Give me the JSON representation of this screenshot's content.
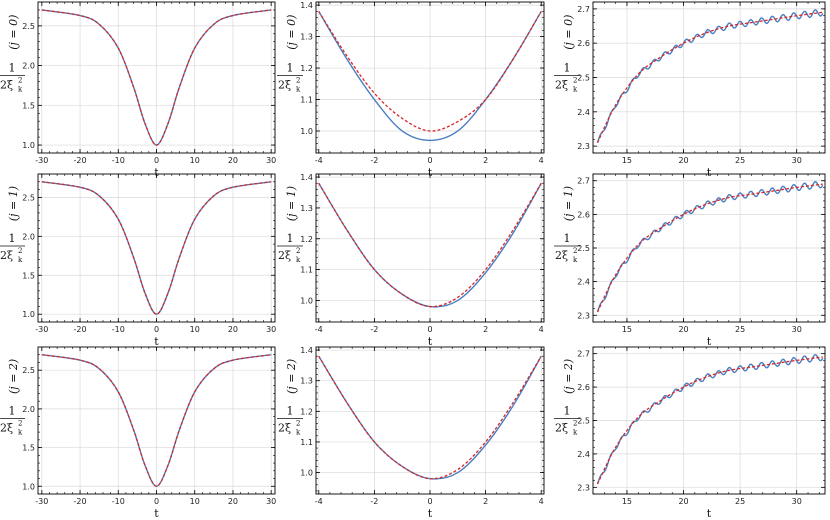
{
  "colors": {
    "exact": "#4a7fc1",
    "approx": "#d62728",
    "grid": "#d9d9d9",
    "frame": "#000000"
  },
  "row_labels": [
    "(j = 0)",
    "(j = 1)",
    "(j = 2)"
  ],
  "ylabel": {
    "numerator": "1",
    "denominator": "2ξ",
    "sub": "k",
    "sup": "2"
  },
  "xlabel": "t",
  "chart_data": [
    {
      "type": "line",
      "row": 0,
      "col": 0,
      "xlabel": "t",
      "ylabel": "1/(2ξ_k^2)",
      "xlim": [
        -31,
        31
      ],
      "ylim": [
        0.9,
        2.8
      ],
      "xticks": [
        -30,
        -20,
        -10,
        0,
        10,
        20,
        30
      ],
      "yticks": [
        1.0,
        1.5,
        2.0,
        2.5
      ],
      "grid": true,
      "series": [
        {
          "role": "exact",
          "style": "solid",
          "x": [
            -30,
            -20,
            -15,
            -10,
            -6,
            -3,
            0,
            3,
            6,
            10,
            15,
            20,
            30
          ],
          "y": [
            2.7,
            2.63,
            2.52,
            2.22,
            1.73,
            1.27,
            1.0,
            1.27,
            1.73,
            2.22,
            2.52,
            2.63,
            2.7
          ]
        },
        {
          "role": "approx",
          "style": "dashed",
          "x": [
            -30,
            -20,
            -15,
            -10,
            -6,
            -3,
            0,
            3,
            6,
            10,
            15,
            20,
            30
          ],
          "y": [
            2.7,
            2.63,
            2.52,
            2.22,
            1.73,
            1.27,
            1.0,
            1.27,
            1.73,
            2.22,
            2.52,
            2.63,
            2.7
          ]
        }
      ]
    },
    {
      "type": "line",
      "row": 0,
      "col": 1,
      "xlabel": "t",
      "ylabel": "1/(2ξ_k^2)",
      "xlim": [
        -4.1,
        4.1
      ],
      "ylim": [
        0.93,
        1.41
      ],
      "xticks": [
        -4,
        -2,
        0,
        2,
        4
      ],
      "yticks": [
        1.0,
        1.1,
        1.2,
        1.3,
        1.4
      ],
      "grid": true,
      "series": [
        {
          "role": "exact",
          "style": "solid",
          "x": [
            -4,
            -3,
            -2,
            -1,
            0,
            1,
            2,
            3,
            4
          ],
          "y": [
            1.38,
            1.23,
            1.1,
            1.0,
            0.97,
            1.0,
            1.1,
            1.23,
            1.38
          ]
        },
        {
          "role": "approx",
          "style": "dashed",
          "x": [
            -4,
            -3,
            -2,
            -1,
            0,
            1,
            2,
            3,
            4
          ],
          "y": [
            1.38,
            1.24,
            1.12,
            1.04,
            1.0,
            1.03,
            1.1,
            1.23,
            1.38
          ]
        }
      ]
    },
    {
      "type": "line",
      "row": 0,
      "col": 2,
      "xlabel": "t",
      "ylabel": "1/(2ξ_k^2)",
      "xlim": [
        12,
        32.5
      ],
      "ylim": [
        2.28,
        2.72
      ],
      "xticks": [
        15,
        20,
        25,
        30
      ],
      "yticks": [
        2.3,
        2.4,
        2.5,
        2.6,
        2.7
      ],
      "grid": true,
      "series": [
        {
          "role": "exact",
          "style": "solid oscillating",
          "x": [
            12.4,
            14,
            16,
            18,
            20,
            22,
            24,
            26,
            28,
            30,
            32.3
          ],
          "y": [
            2.31,
            2.42,
            2.51,
            2.56,
            2.6,
            2.63,
            2.65,
            2.66,
            2.67,
            2.68,
            2.69
          ]
        },
        {
          "role": "approx",
          "style": "dashed",
          "x": [
            12.4,
            14,
            16,
            18,
            20,
            22,
            24,
            26,
            28,
            30,
            32.3
          ],
          "y": [
            2.31,
            2.42,
            2.51,
            2.56,
            2.6,
            2.63,
            2.65,
            2.66,
            2.67,
            2.68,
            2.69
          ]
        }
      ]
    },
    {
      "type": "line",
      "row": 1,
      "col": 0,
      "xlabel": "t",
      "ylabel": "1/(2ξ_k^2)",
      "xlim": [
        -31,
        31
      ],
      "ylim": [
        0.9,
        2.8
      ],
      "xticks": [
        -30,
        -20,
        -10,
        0,
        10,
        20,
        30
      ],
      "yticks": [
        1.0,
        1.5,
        2.0,
        2.5
      ],
      "grid": true,
      "series": [
        {
          "role": "exact",
          "style": "solid",
          "x": [
            -30,
            -20,
            -15,
            -10,
            -6,
            -3,
            0,
            3,
            6,
            10,
            15,
            20,
            30
          ],
          "y": [
            2.7,
            2.63,
            2.52,
            2.22,
            1.73,
            1.27,
            1.0,
            1.27,
            1.73,
            2.22,
            2.52,
            2.63,
            2.7
          ]
        },
        {
          "role": "approx",
          "style": "dashed",
          "x": [
            -30,
            -20,
            -15,
            -10,
            -6,
            -3,
            0,
            3,
            6,
            10,
            15,
            20,
            30
          ],
          "y": [
            2.7,
            2.63,
            2.52,
            2.22,
            1.73,
            1.27,
            1.0,
            1.27,
            1.73,
            2.22,
            2.52,
            2.63,
            2.7
          ]
        }
      ]
    },
    {
      "type": "line",
      "row": 1,
      "col": 1,
      "xlabel": "t",
      "ylabel": "1/(2ξ_k^2)",
      "xlim": [
        -4.1,
        4.1
      ],
      "ylim": [
        0.93,
        1.41
      ],
      "xticks": [
        -4,
        -2,
        0,
        2,
        4
      ],
      "yticks": [
        1.0,
        1.1,
        1.2,
        1.3,
        1.4
      ],
      "grid": true,
      "series": [
        {
          "role": "exact",
          "style": "solid",
          "x": [
            -4,
            -3,
            -2,
            -1,
            0,
            1,
            2,
            3,
            4
          ],
          "y": [
            1.38,
            1.23,
            1.1,
            1.02,
            0.98,
            1.0,
            1.09,
            1.22,
            1.38
          ]
        },
        {
          "role": "approx",
          "style": "dashed",
          "x": [
            -4,
            -3,
            -2,
            -1,
            0,
            1,
            2,
            3,
            4
          ],
          "y": [
            1.38,
            1.23,
            1.1,
            1.02,
            0.98,
            1.01,
            1.1,
            1.23,
            1.38
          ]
        }
      ]
    },
    {
      "type": "line",
      "row": 1,
      "col": 2,
      "xlabel": "t",
      "ylabel": "1/(2ξ_k^2)",
      "xlim": [
        12,
        32.5
      ],
      "ylim": [
        2.28,
        2.72
      ],
      "xticks": [
        15,
        20,
        25,
        30
      ],
      "yticks": [
        2.3,
        2.4,
        2.5,
        2.6,
        2.7
      ],
      "grid": true,
      "series": [
        {
          "role": "exact",
          "style": "solid oscillating",
          "x": [
            12.4,
            14,
            16,
            18,
            20,
            22,
            24,
            26,
            28,
            30,
            32.3
          ],
          "y": [
            2.31,
            2.42,
            2.51,
            2.56,
            2.6,
            2.63,
            2.65,
            2.66,
            2.67,
            2.68,
            2.69
          ]
        },
        {
          "role": "approx",
          "style": "dashed",
          "x": [
            12.4,
            14,
            16,
            18,
            20,
            22,
            24,
            26,
            28,
            30,
            32.3
          ],
          "y": [
            2.31,
            2.42,
            2.51,
            2.56,
            2.6,
            2.63,
            2.65,
            2.66,
            2.67,
            2.68,
            2.69
          ]
        }
      ]
    },
    {
      "type": "line",
      "row": 2,
      "col": 0,
      "xlabel": "t",
      "ylabel": "1/(2ξ_k^2)",
      "xlim": [
        -31,
        31
      ],
      "ylim": [
        0.9,
        2.8
      ],
      "xticks": [
        -30,
        -20,
        -10,
        0,
        10,
        20,
        30
      ],
      "yticks": [
        1.0,
        1.5,
        2.0,
        2.5
      ],
      "grid": true,
      "series": [
        {
          "role": "exact",
          "style": "solid",
          "x": [
            -30,
            -20,
            -15,
            -10,
            -6,
            -3,
            0,
            3,
            6,
            10,
            15,
            20,
            30
          ],
          "y": [
            2.7,
            2.63,
            2.52,
            2.22,
            1.73,
            1.27,
            1.0,
            1.27,
            1.73,
            2.22,
            2.52,
            2.63,
            2.7
          ]
        },
        {
          "role": "approx",
          "style": "dashed",
          "x": [
            -30,
            -20,
            -15,
            -10,
            -6,
            -3,
            0,
            3,
            6,
            10,
            15,
            20,
            30
          ],
          "y": [
            2.7,
            2.63,
            2.52,
            2.22,
            1.73,
            1.27,
            1.0,
            1.27,
            1.73,
            2.22,
            2.52,
            2.63,
            2.7
          ]
        }
      ]
    },
    {
      "type": "line",
      "row": 2,
      "col": 1,
      "xlabel": "t",
      "ylabel": "1/(2ξ_k^2)",
      "xlim": [
        -4.1,
        4.1
      ],
      "ylim": [
        0.93,
        1.41
      ],
      "xticks": [
        -4,
        -2,
        0,
        2,
        4
      ],
      "yticks": [
        1.0,
        1.1,
        1.2,
        1.3,
        1.4
      ],
      "grid": true,
      "series": [
        {
          "role": "exact",
          "style": "solid",
          "x": [
            -4,
            -3,
            -2,
            -1,
            0,
            1,
            2,
            3,
            4
          ],
          "y": [
            1.38,
            1.23,
            1.1,
            1.02,
            0.98,
            1.0,
            1.09,
            1.22,
            1.38
          ]
        },
        {
          "role": "approx",
          "style": "dashed",
          "x": [
            -4,
            -3,
            -2,
            -1,
            0,
            1,
            2,
            3,
            4
          ],
          "y": [
            1.38,
            1.23,
            1.1,
            1.02,
            0.98,
            1.01,
            1.1,
            1.23,
            1.38
          ]
        }
      ]
    },
    {
      "type": "line",
      "row": 2,
      "col": 2,
      "xlabel": "t",
      "ylabel": "1/(2ξ_k^2)",
      "xlim": [
        12,
        32.5
      ],
      "ylim": [
        2.28,
        2.72
      ],
      "xticks": [
        15,
        20,
        25,
        30
      ],
      "yticks": [
        2.3,
        2.4,
        2.5,
        2.6,
        2.7
      ],
      "grid": true,
      "series": [
        {
          "role": "exact",
          "style": "solid oscillating",
          "x": [
            12.4,
            14,
            16,
            18,
            20,
            22,
            24,
            26,
            28,
            30,
            32.3
          ],
          "y": [
            2.31,
            2.42,
            2.51,
            2.56,
            2.6,
            2.63,
            2.65,
            2.66,
            2.67,
            2.68,
            2.69
          ]
        },
        {
          "role": "approx",
          "style": "dashed",
          "x": [
            12.4,
            14,
            16,
            18,
            20,
            22,
            24,
            26,
            28,
            30,
            32.3
          ],
          "y": [
            2.31,
            2.42,
            2.51,
            2.56,
            2.6,
            2.63,
            2.65,
            2.66,
            2.67,
            2.68,
            2.69
          ]
        }
      ]
    }
  ]
}
